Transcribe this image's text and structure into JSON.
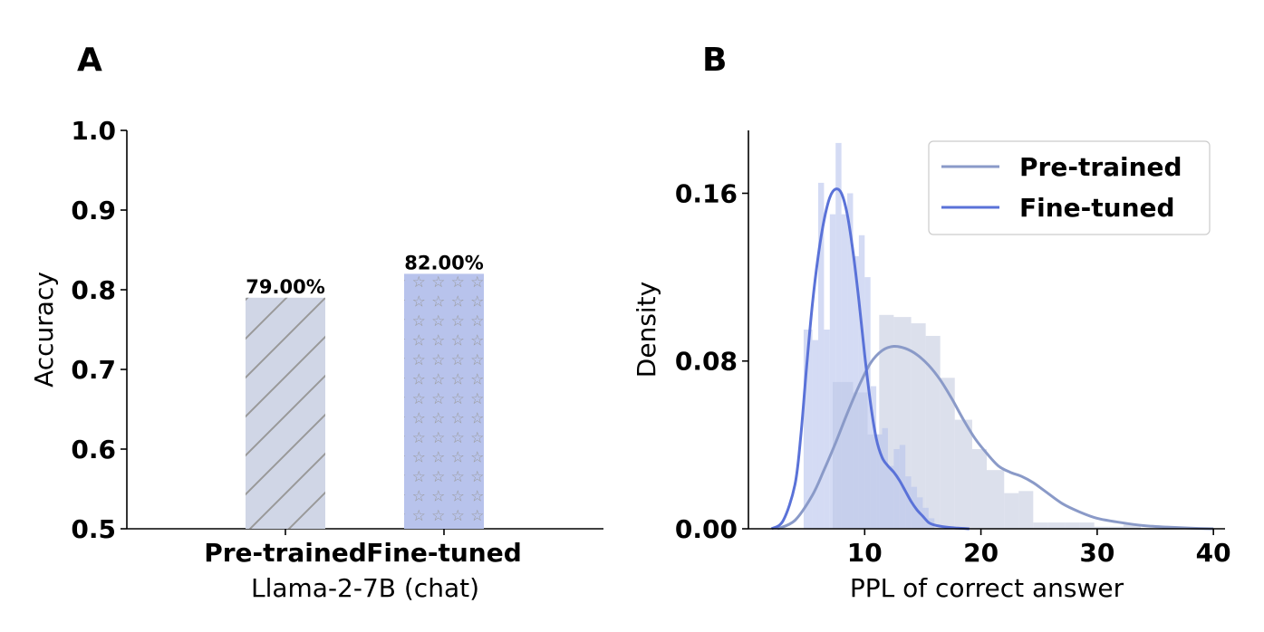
{
  "panels": {
    "a_letter": "A",
    "b_letter": "B"
  },
  "colors": {
    "pretrained": "#8a9ac8",
    "pretrained_fill": "#d0d6e6",
    "finetuned": "#5a72d8",
    "finetuned_fill": "#b8c3ec",
    "hatch": "#999999"
  },
  "chart_data": [
    {
      "type": "bar",
      "title": "",
      "categories": [
        "Pre-trained",
        "Fine-tuned"
      ],
      "values": [
        0.79,
        0.82
      ],
      "value_labels": [
        "79.00%",
        "82.00%"
      ],
      "xlabel": "Llama-2-7B (chat)",
      "ylabel": "Accuracy",
      "ylim": [
        0.5,
        1.0
      ],
      "yticks": [
        0.5,
        0.6,
        0.7,
        0.8,
        0.9,
        1.0
      ],
      "ytick_labels": [
        "0.5",
        "0.6",
        "0.7",
        "0.8",
        "0.9",
        "1.0"
      ],
      "hatch": [
        "diagonal",
        "star"
      ],
      "grid": false
    },
    {
      "type": "area",
      "title": "",
      "xlabel": "PPL of correct answer",
      "ylabel": "Density",
      "xlim": [
        0,
        41
      ],
      "ylim": [
        0,
        0.19
      ],
      "xticks": [
        10,
        20,
        30,
        40
      ],
      "xtick_labels": [
        "10",
        "20",
        "30",
        "40"
      ],
      "yticks": [
        0.0,
        0.08,
        0.16
      ],
      "ytick_labels": [
        "0.00",
        "0.08",
        "0.16"
      ],
      "legend": {
        "placement": "top-right",
        "entries": [
          "Pre-trained",
          "Fine-tuned"
        ]
      },
      "grid": false,
      "series": [
        {
          "name": "Pre-trained",
          "hist_edges": [
            7.25,
            9.0,
            10.25,
            11.25,
            12.5,
            14.0,
            15.25,
            16.5,
            17.75,
            19.25,
            20.5,
            22.0,
            23.25,
            24.5,
            25.75,
            27.25,
            28.5,
            29.75,
            31.0,
            32.25,
            33.75,
            35.0
          ],
          "hist_density": [
            0.07,
            0.065,
            0.045,
            0.102,
            0.101,
            0.098,
            0.092,
            0.072,
            0.052,
            0.038,
            0.028,
            0.017,
            0.018,
            0.003,
            0.003,
            0.003,
            0.003,
            0.001,
            0.001,
            0.002,
            0.0
          ],
          "kde_x": [
            2.5,
            4.0,
            5.5,
            6.5,
            7.5,
            8.5,
            9.5,
            10.5,
            11.5,
            12.5,
            13.5,
            14.5,
            15.5,
            16.5,
            17.5,
            18.5,
            19.5,
            20.5,
            21.5,
            22.5,
            23.5,
            24.5,
            25.5,
            27.0,
            28.5,
            30.0,
            32.0,
            34.0,
            36.0,
            38.0,
            40.0
          ],
          "kde_y": [
            0.0,
            0.004,
            0.016,
            0.028,
            0.041,
            0.055,
            0.068,
            0.079,
            0.085,
            0.087,
            0.086,
            0.083,
            0.078,
            0.071,
            0.062,
            0.052,
            0.043,
            0.036,
            0.03,
            0.027,
            0.025,
            0.022,
            0.018,
            0.012,
            0.008,
            0.005,
            0.003,
            0.0015,
            0.0008,
            0.0003,
            0.0
          ]
        },
        {
          "name": "Fine-tuned",
          "hist_edges": [
            4.75,
            5.5,
            6.0,
            6.5,
            7.0,
            7.5,
            8.0,
            8.5,
            9.0,
            9.5,
            10.0,
            10.5,
            11.0,
            11.5,
            12.0,
            12.5,
            13.0,
            13.5,
            14.0,
            14.5,
            15.0,
            15.5,
            16.0
          ],
          "hist_density": [
            0.095,
            0.09,
            0.165,
            0.095,
            0.15,
            0.184,
            0.15,
            0.16,
            0.13,
            0.14,
            0.12,
            0.068,
            0.045,
            0.048,
            0.03,
            0.038,
            0.04,
            0.025,
            0.02,
            0.015,
            0.01,
            0.005
          ],
          "kde_x": [
            2.0,
            3.0,
            4.0,
            4.5,
            5.0,
            5.5,
            6.0,
            6.5,
            7.0,
            7.5,
            8.0,
            8.5,
            9.0,
            9.5,
            10.0,
            10.5,
            11.0,
            11.5,
            12.0,
            12.5,
            13.0,
            13.5,
            14.0,
            14.5,
            15.0,
            15.5,
            16.0,
            17.0,
            18.0,
            19.0
          ],
          "kde_y": [
            0.0,
            0.004,
            0.021,
            0.044,
            0.077,
            0.107,
            0.13,
            0.147,
            0.158,
            0.162,
            0.16,
            0.15,
            0.132,
            0.109,
            0.083,
            0.06,
            0.043,
            0.034,
            0.03,
            0.027,
            0.023,
            0.018,
            0.013,
            0.009,
            0.006,
            0.003,
            0.0018,
            0.0008,
            0.0003,
            0.0
          ]
        }
      ]
    }
  ]
}
